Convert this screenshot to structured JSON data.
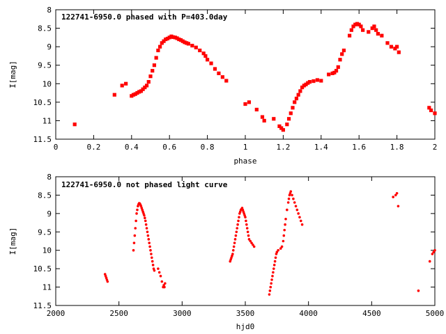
{
  "chart_data": [
    {
      "type": "scatter",
      "title": "122741-6950.0 phased with P=403.0day",
      "xlabel": "phase",
      "ylabel": "I[mag]",
      "xlim": [
        0,
        2
      ],
      "ylim": [
        11.5,
        8
      ],
      "y_inverted": true,
      "x_ticks": [
        "0",
        "0.2",
        "0.4",
        "0.6",
        "0.8",
        "1",
        "1.2",
        "1.4",
        "1.6",
        "1.8",
        "2"
      ],
      "y_ticks": [
        "8",
        "8.5",
        "9",
        "9.5",
        "10",
        "10.5",
        "11",
        "11.5"
      ],
      "grid": false,
      "marker_color": "#ff0000",
      "series": [
        {
          "x": [
            0.1,
            0.31,
            0.35,
            0.37,
            0.4,
            0.41,
            0.42,
            0.43,
            0.44,
            0.45,
            0.46,
            0.47,
            0.48,
            0.49,
            0.5,
            0.51,
            0.52,
            0.53,
            0.54,
            0.55,
            0.56,
            0.57,
            0.58,
            0.59,
            0.6,
            0.61,
            0.62,
            0.63,
            0.64,
            0.65,
            0.66,
            0.67,
            0.68,
            0.69,
            0.7,
            0.72,
            0.74,
            0.76,
            0.78,
            0.79,
            0.8,
            0.82,
            0.84,
            0.86,
            0.88,
            0.9,
            1.0,
            1.02,
            1.06,
            1.09,
            1.1,
            1.15,
            1.18,
            1.19,
            1.2,
            1.22,
            1.23,
            1.24,
            1.25,
            1.26,
            1.27,
            1.28,
            1.29,
            1.3,
            1.31,
            1.32,
            1.33,
            1.34,
            1.36,
            1.38,
            1.4,
            1.44,
            1.46,
            1.47,
            1.48,
            1.49,
            1.5,
            1.51,
            1.52,
            1.55,
            1.56,
            1.57,
            1.58,
            1.59,
            1.6,
            1.61,
            1.62,
            1.65,
            1.67,
            1.68,
            1.69,
            1.7,
            1.72,
            1.75,
            1.77,
            1.79,
            1.8,
            1.81,
            1.97,
            1.98,
            2.0
          ],
          "y": [
            11.1,
            10.3,
            10.05,
            10.0,
            10.33,
            10.3,
            10.28,
            10.25,
            10.22,
            10.2,
            10.15,
            10.1,
            10.05,
            9.95,
            9.8,
            9.65,
            9.5,
            9.3,
            9.1,
            9.0,
            8.9,
            8.85,
            8.8,
            8.78,
            8.75,
            8.72,
            8.74,
            8.75,
            8.77,
            8.8,
            8.82,
            8.85,
            8.88,
            8.9,
            8.92,
            8.97,
            9.02,
            9.1,
            9.18,
            9.25,
            9.35,
            9.45,
            9.6,
            9.72,
            9.82,
            9.92,
            10.55,
            10.5,
            10.7,
            10.9,
            11.0,
            10.95,
            11.15,
            11.2,
            11.25,
            11.1,
            10.95,
            10.8,
            10.65,
            10.5,
            10.4,
            10.3,
            10.2,
            10.1,
            10.05,
            10.02,
            9.98,
            9.95,
            9.93,
            9.9,
            9.92,
            9.75,
            9.72,
            9.7,
            9.65,
            9.55,
            9.35,
            9.2,
            9.1,
            8.7,
            8.55,
            8.45,
            8.4,
            8.38,
            8.4,
            8.45,
            8.55,
            8.6,
            8.5,
            8.45,
            8.55,
            8.65,
            8.7,
            8.9,
            9.0,
            9.05,
            9.0,
            9.15,
            10.65,
            10.72,
            10.8
          ]
        }
      ]
    },
    {
      "type": "scatter",
      "title": "122741-6950.0 not phased light curve",
      "xlabel": "hjd0",
      "ylabel": "I[mag]",
      "xlim": [
        2000,
        5000
      ],
      "ylim": [
        11.5,
        8
      ],
      "y_inverted": true,
      "x_ticks": [
        "2000",
        "2500",
        "3000",
        "3500",
        "4000",
        "4500",
        "5000"
      ],
      "y_ticks": [
        "8",
        "8.5",
        "9",
        "9.5",
        "10",
        "10.5",
        "11",
        "11.5"
      ],
      "grid": false,
      "marker_color": "#ff0000",
      "series": [
        {
          "x": [
            2390,
            2395,
            2400,
            2405,
            2410,
            2615,
            2620,
            2625,
            2630,
            2635,
            2640,
            2645,
            2650,
            2655,
            2660,
            2665,
            2670,
            2675,
            2680,
            2685,
            2690,
            2695,
            2700,
            2705,
            2710,
            2715,
            2720,
            2725,
            2730,
            2735,
            2740,
            2745,
            2750,
            2755,
            2760,
            2765,
            2770,
            2775,
            2780,
            2810,
            2820,
            2830,
            2840,
            2850,
            2855,
            2860,
            2865,
            3380,
            3385,
            3390,
            3395,
            3400,
            3405,
            3410,
            3415,
            3420,
            3425,
            3430,
            3435,
            3440,
            3445,
            3450,
            3455,
            3460,
            3465,
            3470,
            3475,
            3480,
            3485,
            3490,
            3495,
            3500,
            3505,
            3510,
            3515,
            3520,
            3525,
            3530,
            3540,
            3550,
            3560,
            3570,
            3690,
            3695,
            3700,
            3705,
            3710,
            3715,
            3720,
            3725,
            3730,
            3735,
            3740,
            3745,
            3750,
            3760,
            3780,
            3790,
            3800,
            3805,
            3810,
            3815,
            3820,
            3830,
            3840,
            3845,
            3850,
            3855,
            3860,
            3870,
            3880,
            3890,
            3900,
            3910,
            3920,
            3930,
            3940,
            3950,
            4670,
            4690,
            4700,
            4710,
            4870,
            4960,
            4980,
            4990,
            5000
          ],
          "y": [
            10.65,
            10.7,
            10.75,
            10.8,
            10.85,
            10.0,
            9.8,
            9.6,
            9.4,
            9.2,
            9.0,
            8.9,
            8.8,
            8.75,
            8.72,
            8.73,
            8.76,
            8.8,
            8.85,
            8.9,
            8.95,
            9.0,
            9.05,
            9.12,
            9.2,
            9.3,
            9.4,
            9.5,
            9.6,
            9.7,
            9.8,
            9.9,
            10.0,
            10.1,
            10.2,
            10.3,
            10.4,
            10.5,
            10.55,
            10.5,
            10.6,
            10.7,
            10.85,
            11.0,
            10.95,
            11.0,
            10.9,
            10.3,
            10.25,
            10.2,
            10.15,
            10.1,
            10.0,
            9.9,
            9.8,
            9.7,
            9.6,
            9.5,
            9.4,
            9.3,
            9.2,
            9.1,
            9.0,
            8.95,
            8.9,
            8.88,
            8.85,
            8.9,
            8.95,
            9.0,
            9.05,
            9.1,
            9.2,
            9.3,
            9.4,
            9.5,
            9.6,
            9.7,
            9.75,
            9.8,
            9.85,
            9.9,
            11.2,
            11.1,
            11.0,
            10.9,
            10.8,
            10.7,
            10.6,
            10.5,
            10.4,
            10.3,
            10.2,
            10.1,
            10.05,
            10.0,
            9.95,
            9.9,
            9.75,
            9.6,
            9.45,
            9.3,
            9.15,
            8.9,
            8.7,
            8.6,
            8.5,
            8.45,
            8.4,
            8.5,
            8.6,
            8.7,
            8.8,
            8.9,
            9.0,
            9.1,
            9.2,
            9.3,
            8.55,
            8.5,
            8.45,
            8.8,
            11.1,
            10.3,
            10.1,
            10.05,
            10.0
          ]
        }
      ]
    }
  ]
}
